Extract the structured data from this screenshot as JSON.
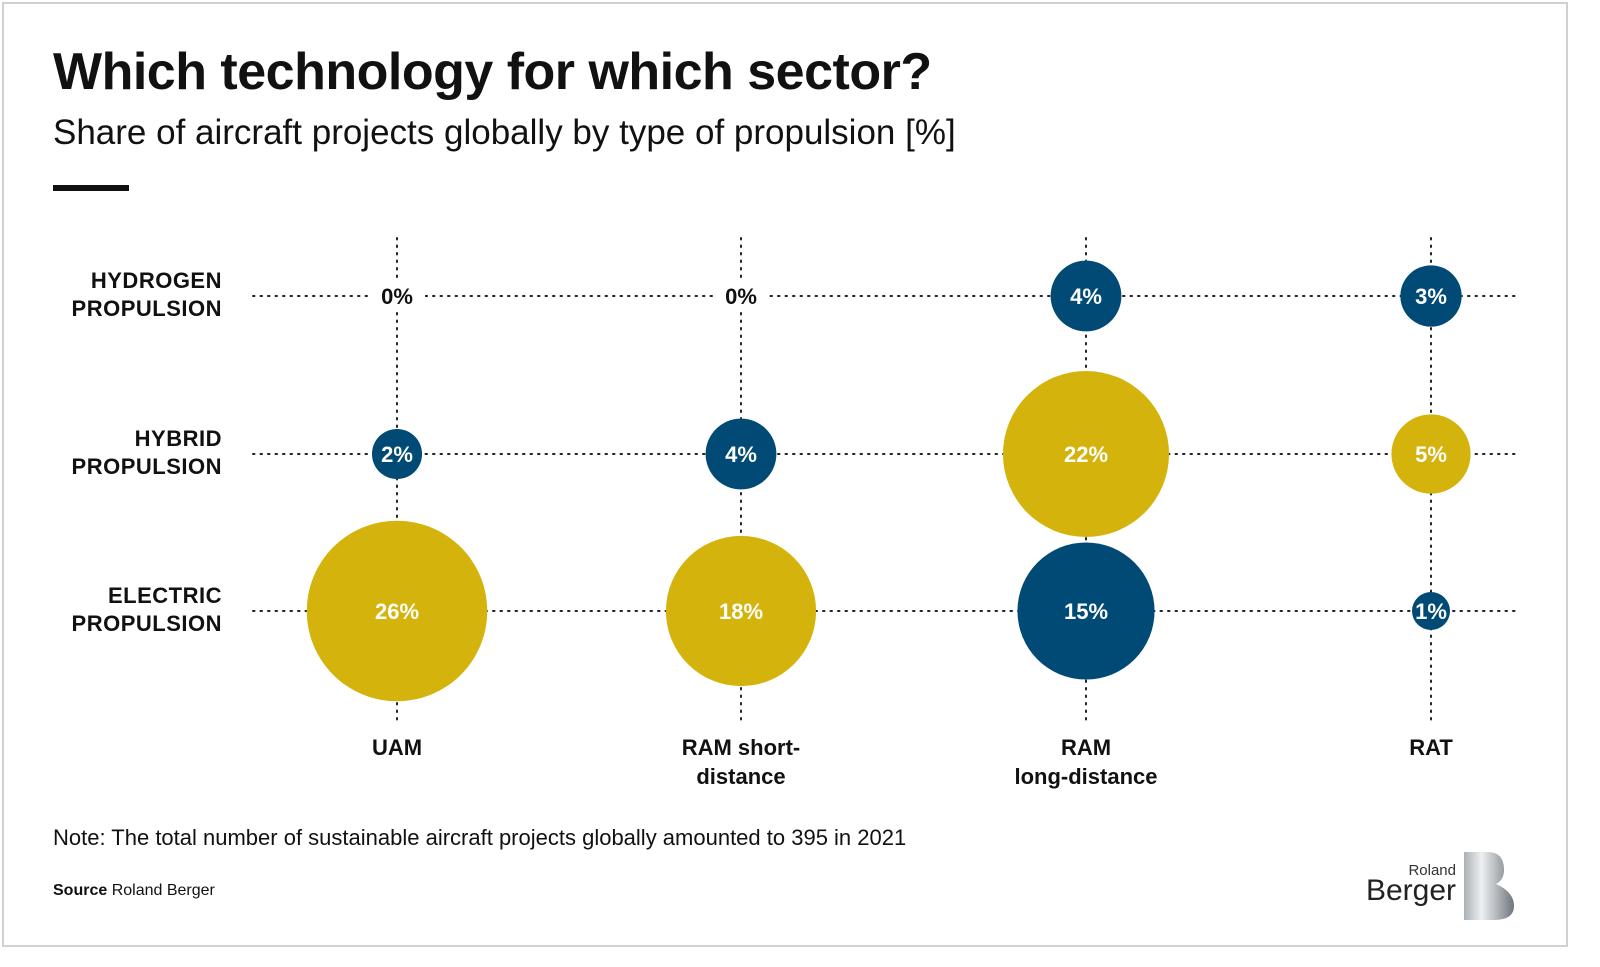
{
  "title": "Which technology for which sector?",
  "subtitle": "Share of aircraft projects globally by type of propulsion [%]",
  "note": "Note: The total number of sustainable aircraft projects globally amounted to 395 in 2021",
  "source_label": "Source",
  "source_text": "Roland Berger",
  "logo": {
    "line1": "Roland",
    "line2": "Berger"
  },
  "colors": {
    "blue": "#004a75",
    "gold": "#d4b30c",
    "grid": "#222222"
  },
  "chart_data": {
    "type": "scatter",
    "subtype": "bubble",
    "categories": [
      "UAM",
      "RAM short-distance",
      "RAM long-distance",
      "RAT"
    ],
    "category_labels": [
      [
        "UAM"
      ],
      [
        "RAM short-",
        "distance"
      ],
      [
        "RAM",
        "long-distance"
      ],
      [
        "RAT"
      ]
    ],
    "rows": [
      [
        "HYDROGEN",
        "PROPULSION"
      ],
      [
        "HYBRID",
        "PROPULSION"
      ],
      [
        "ELECTRIC",
        "PROPULSION"
      ]
    ],
    "row_names": [
      "Hydrogen propulsion",
      "Hybrid propulsion",
      "Electric propulsion"
    ],
    "values": [
      [
        0,
        0,
        4,
        3
      ],
      [
        2,
        4,
        22,
        5
      ],
      [
        26,
        18,
        15,
        1
      ]
    ],
    "point_colors": [
      [
        "none",
        "none",
        "blue",
        "blue"
      ],
      [
        "blue",
        "blue",
        "gold",
        "gold"
      ],
      [
        "gold",
        "gold",
        "blue",
        "blue"
      ]
    ],
    "unit": "%",
    "grid": "dotted"
  }
}
